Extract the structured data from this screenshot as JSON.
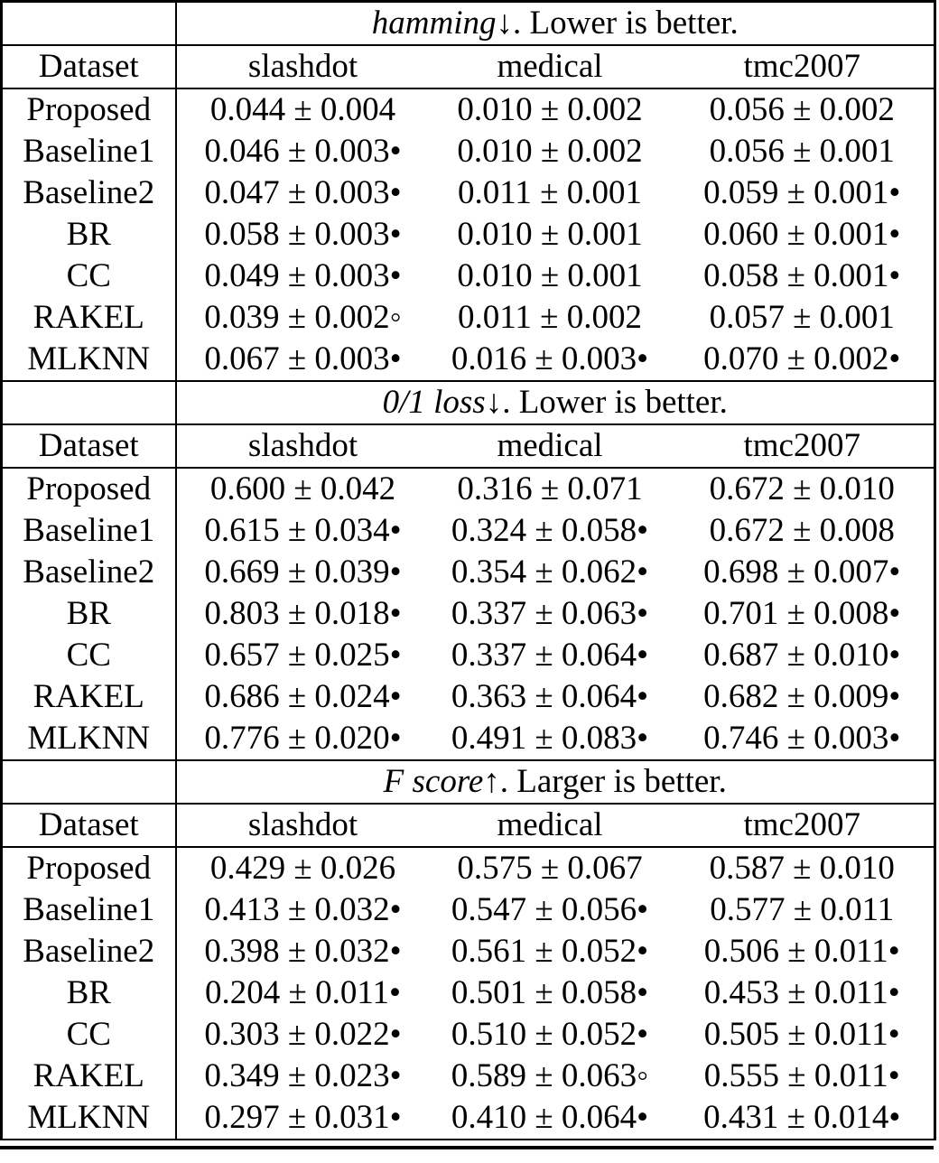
{
  "page": {
    "background": "#ffffff",
    "text_color": "#000000",
    "border_color": "#000000"
  },
  "legend": {
    "filled_marker": "•",
    "open_marker": "◦",
    "plus_minus": "±"
  },
  "table": {
    "col1_header": "Dataset",
    "sections": [
      {
        "metric": "hamming",
        "metric_suffix": "↓. Lower is better.",
        "datasets": [
          "slashdot",
          "medical",
          "tmc2007"
        ],
        "rows": [
          {
            "method": "Proposed",
            "cells": [
              "0.044 ± 0.004",
              "0.010 ± 0.002",
              "0.056 ± 0.002"
            ]
          },
          {
            "method": "Baseline1",
            "cells": [
              "0.046 ± 0.003•",
              "0.010 ± 0.002",
              "0.056 ± 0.001"
            ]
          },
          {
            "method": "Baseline2",
            "cells": [
              "0.047 ± 0.003•",
              "0.011 ± 0.001",
              "0.059 ± 0.001•"
            ]
          },
          {
            "method": "BR",
            "cells": [
              "0.058 ± 0.003•",
              "0.010 ± 0.001",
              "0.060 ± 0.001•"
            ]
          },
          {
            "method": "CC",
            "cells": [
              "0.049 ± 0.003•",
              "0.010 ± 0.001",
              "0.058 ± 0.001•"
            ]
          },
          {
            "method": "RAKEL",
            "cells": [
              "0.039 ± 0.002◦",
              "0.011 ± 0.002",
              "0.057 ± 0.001"
            ]
          },
          {
            "method": "MLKNN",
            "cells": [
              "0.067 ± 0.003•",
              "0.016 ± 0.003•",
              "0.070 ± 0.002•"
            ]
          }
        ]
      },
      {
        "metric": "0/1 loss",
        "metric_suffix": "↓. Lower is better.",
        "datasets": [
          "slashdot",
          "medical",
          "tmc2007"
        ],
        "rows": [
          {
            "method": "Proposed",
            "cells": [
              "0.600 ± 0.042",
              "0.316 ± 0.071",
              "0.672 ± 0.010"
            ]
          },
          {
            "method": "Baseline1",
            "cells": [
              "0.615 ± 0.034•",
              "0.324 ± 0.058•",
              "0.672 ± 0.008"
            ]
          },
          {
            "method": "Baseline2",
            "cells": [
              "0.669 ± 0.039•",
              "0.354 ± 0.062•",
              "0.698 ± 0.007•"
            ]
          },
          {
            "method": "BR",
            "cells": [
              "0.803 ± 0.018•",
              "0.337 ± 0.063•",
              "0.701 ± 0.008•"
            ]
          },
          {
            "method": "CC",
            "cells": [
              "0.657 ± 0.025•",
              "0.337 ± 0.064•",
              "0.687 ± 0.010•"
            ]
          },
          {
            "method": "RAKEL",
            "cells": [
              "0.686 ± 0.024•",
              "0.363 ± 0.064•",
              "0.682 ± 0.009•"
            ]
          },
          {
            "method": "MLKNN",
            "cells": [
              "0.776 ± 0.020•",
              "0.491 ± 0.083•",
              "0.746 ± 0.003•"
            ]
          }
        ]
      },
      {
        "metric": "F score",
        "metric_suffix": "↑. Larger is better.",
        "datasets": [
          "slashdot",
          "medical",
          "tmc2007"
        ],
        "rows": [
          {
            "method": "Proposed",
            "cells": [
              "0.429 ± 0.026",
              "0.575 ± 0.067",
              "0.587 ± 0.010"
            ]
          },
          {
            "method": "Baseline1",
            "cells": [
              "0.413 ± 0.032•",
              "0.547 ± 0.056•",
              "0.577 ± 0.011"
            ]
          },
          {
            "method": "Baseline2",
            "cells": [
              "0.398 ± 0.032•",
              "0.561 ± 0.052•",
              "0.506 ± 0.011•"
            ]
          },
          {
            "method": "BR",
            "cells": [
              "0.204 ± 0.011•",
              "0.501 ± 0.058•",
              "0.453 ± 0.011•"
            ]
          },
          {
            "method": "CC",
            "cells": [
              "0.303 ± 0.022•",
              "0.510 ± 0.052•",
              "0.505 ± 0.011•"
            ]
          },
          {
            "method": "RAKEL",
            "cells": [
              "0.349 ± 0.023•",
              "0.589 ± 0.063◦",
              "0.555 ± 0.011•"
            ]
          },
          {
            "method": "MLKNN",
            "cells": [
              "0.297 ± 0.031•",
              "0.410 ± 0.064•",
              "0.431 ± 0.014•"
            ]
          }
        ]
      }
    ]
  }
}
